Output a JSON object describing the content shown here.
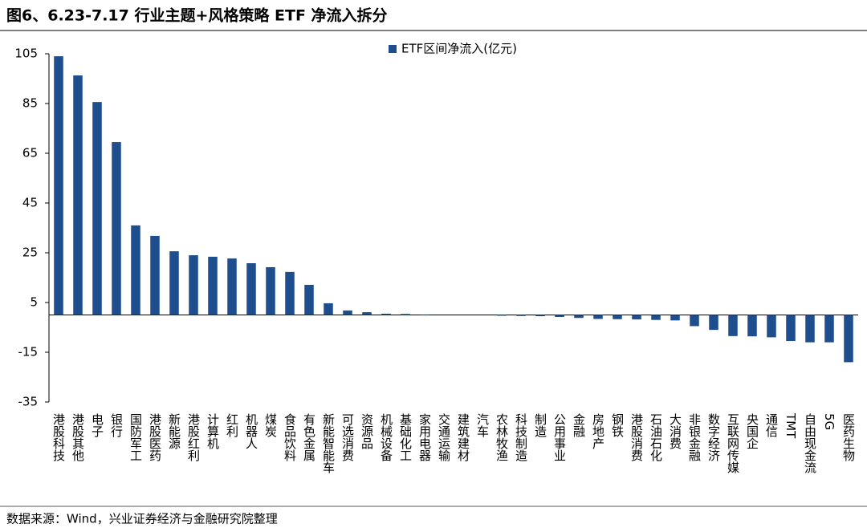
{
  "chart_data": {
    "type": "bar",
    "title": "图6、6.23-7.17 行业主题+风格策略 ETF 净流入拆分",
    "source": "数据来源：Wind，兴业证券经济与金融研究院整理",
    "series": [
      {
        "name": "ETF区间净流入(亿元)",
        "color": "#1f4e8f",
        "values": [
          104,
          96.3,
          85.6,
          69.5,
          36,
          31.8,
          25.6,
          24,
          23.4,
          22.7,
          20.8,
          19.2,
          17.3,
          12.1,
          4.7,
          1.8,
          1.1,
          0.5,
          0.4,
          0.1,
          0,
          0,
          0,
          -0.3,
          -0.4,
          -0.5,
          -0.8,
          -1.2,
          -1.6,
          -1.7,
          -1.8,
          -2,
          -2.2,
          -4.5,
          -6,
          -8.5,
          -8.6,
          -9,
          -10.5,
          -11,
          -11,
          -19
        ]
      }
    ],
    "categories": [
      "港股科技",
      "港股其他",
      "电子",
      "银行",
      "国防军工",
      "港股医药",
      "新能源",
      "港股红利",
      "计算机",
      "红利",
      "机器人",
      "煤炭",
      "食品饮料",
      "有色金属",
      "新能智能车",
      "可选消费",
      "资源品",
      "机械设备",
      "基础化工",
      "家用电器",
      "交通运输",
      "建筑建材",
      "汽车",
      "农林牧渔",
      "科技制造",
      "制造",
      "公用事业",
      "金融",
      "房地产",
      "钢铁",
      "港股消费",
      "石油石化",
      "大消费",
      "非银金融",
      "数字经济",
      "互联网传媒",
      "央国企",
      "通信",
      "TMT",
      "自由现金流",
      "5G",
      "医药生物"
    ],
    "ylim": [
      -35,
      105
    ],
    "yticks": [
      105,
      85,
      65,
      45,
      25,
      5,
      -15,
      -35
    ],
    "grid": false,
    "legend": "top"
  }
}
